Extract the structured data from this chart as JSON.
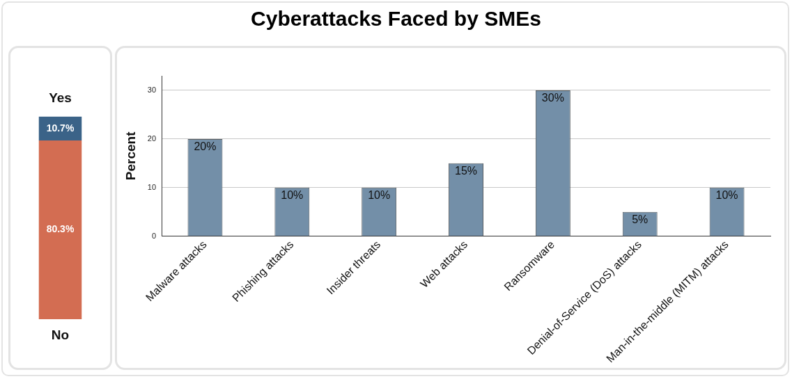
{
  "chart_data": [
    {
      "type": "bar",
      "stacked": true,
      "categories": [
        null
      ],
      "tick_labels": false,
      "series": [
        {
          "name": "No",
          "color": "#d36d52",
          "values": [
            80.3
          ],
          "value_labels": [
            "80.3%"
          ]
        },
        {
          "name": "Yes",
          "color": "#3b6388",
          "values": [
            10.7
          ],
          "value_labels": [
            "10.7%"
          ]
        }
      ]
    },
    {
      "type": "bar",
      "title": "Cyberattacks Faced by SMEs",
      "ylabel": "Percent",
      "categories": [
        "Malware attacks",
        "Phishing attacks",
        "Insider threats",
        "Web attacks",
        "Ransomware",
        "Denial-of-Service (DoS) attacks",
        "Man-in-the-middle (MITM) attacks"
      ],
      "values": [
        20,
        10,
        10,
        15,
        30,
        5,
        10
      ],
      "value_labels": [
        "20%",
        "10%",
        "10%",
        "15%",
        "30%",
        "5%",
        "10%"
      ],
      "color": "#738fa8",
      "ylim": [
        0,
        33
      ],
      "yticks": [
        0,
        10,
        20,
        30
      ],
      "grid": "y"
    }
  ]
}
